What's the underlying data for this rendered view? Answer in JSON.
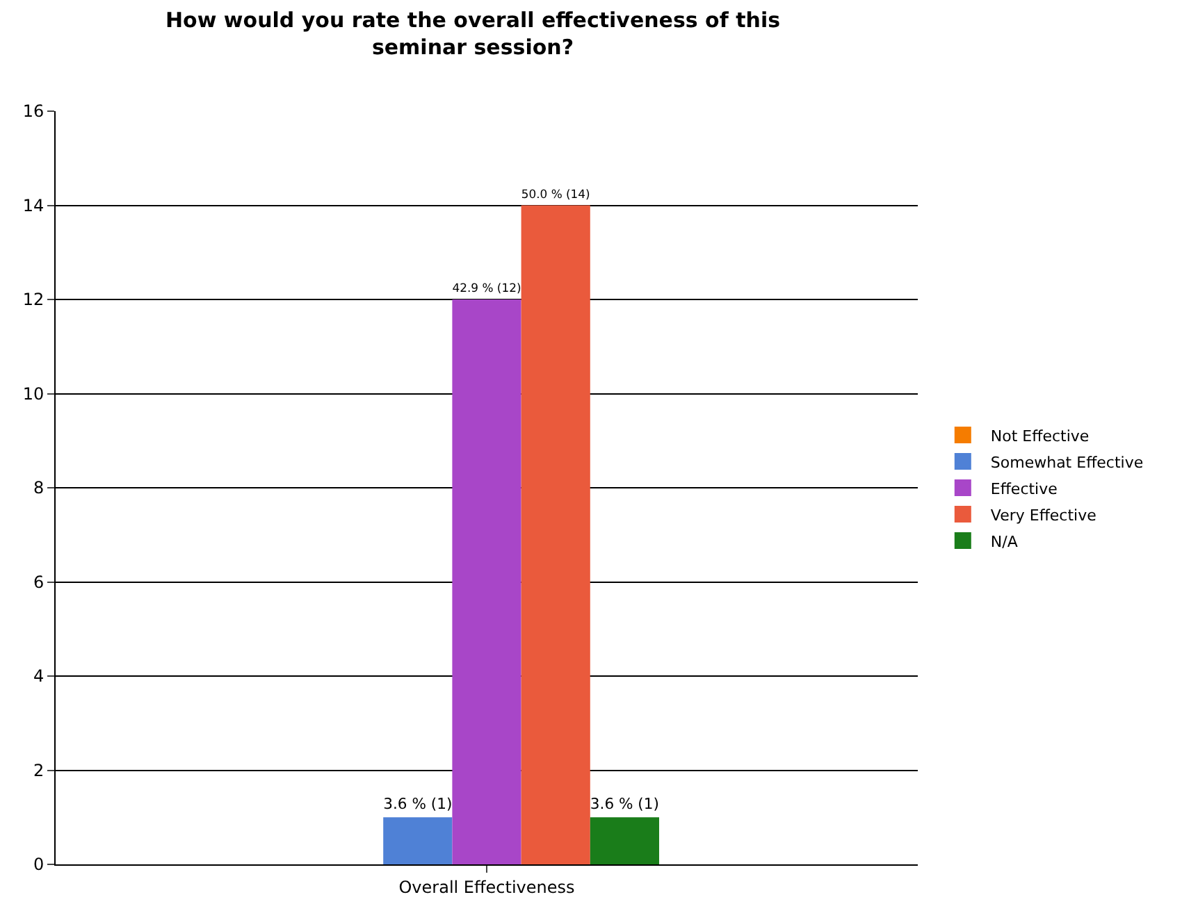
{
  "chart_data": {
    "type": "bar",
    "title": "How would you rate the overall effectiveness of this seminar session?",
    "categories": [
      "Overall Effectiveness"
    ],
    "series": [
      {
        "name": "Not Effective",
        "color": "#f57c00",
        "values": [
          0
        ],
        "value_labels": [
          null
        ]
      },
      {
        "name": "Somewhat Effective",
        "color": "#4f81d6",
        "values": [
          1
        ],
        "value_labels": [
          "3.6 % (1)"
        ]
      },
      {
        "name": "Effective",
        "color": "#a846c8",
        "values": [
          12
        ],
        "value_labels": [
          "42.9 % (12)"
        ]
      },
      {
        "name": "Very Effective",
        "color": "#ea5a3c",
        "values": [
          14
        ],
        "value_labels": [
          "50.0 % (14)"
        ]
      },
      {
        "name": "N/A",
        "color": "#1a7d1a",
        "values": [
          1
        ],
        "value_labels": [
          "3.6 % (1)"
        ]
      }
    ],
    "ylim": [
      0,
      16
    ],
    "yticks": [
      0,
      2,
      4,
      6,
      8,
      10,
      12,
      14,
      16
    ],
    "grid": "y",
    "legend": "right"
  }
}
